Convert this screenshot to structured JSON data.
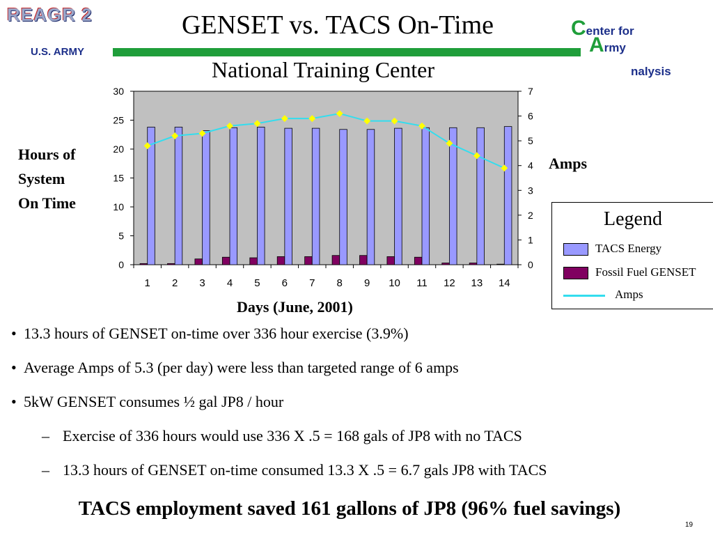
{
  "slide": {
    "logo_left": "REAGR 2",
    "org_left": "U.S. ARMY",
    "title": "GENSET vs. TACS On-Time",
    "subtitle": "National Training Center",
    "logo_right": {
      "line1_initial": "C",
      "line1_rest": "enter for",
      "line2_initial": "A",
      "line2_rest": "rmy",
      "line3": "nalysis"
    },
    "page_number": "19"
  },
  "chart_labels": {
    "y_left": [
      "Hours of",
      "System",
      "On Time"
    ],
    "y_right": "Amps",
    "x": "Days  (June, 2001)"
  },
  "legend": {
    "title": "Legend",
    "items": [
      "TACS  Energy",
      "Fossil Fuel GENSET",
      "Amps"
    ]
  },
  "chart_data": {
    "type": "bar",
    "categories": [
      "1",
      "2",
      "3",
      "4",
      "5",
      "6",
      "7",
      "8",
      "9",
      "10",
      "11",
      "12",
      "13",
      "14"
    ],
    "series": [
      {
        "name": "TACS  Energy",
        "axis": "left",
        "color": "#9999ff",
        "values": [
          23.8,
          23.8,
          23.2,
          23.7,
          23.8,
          23.6,
          23.6,
          23.4,
          23.4,
          23.6,
          23.7,
          23.7,
          23.7,
          23.9
        ]
      },
      {
        "name": "Fossil Fuel GENSET",
        "axis": "left",
        "color": "#800060",
        "values": [
          0.2,
          0.2,
          1.0,
          1.3,
          1.2,
          1.4,
          1.4,
          1.6,
          1.6,
          1.4,
          1.3,
          0.3,
          0.3,
          0.1
        ]
      },
      {
        "name": "Amps",
        "axis": "right",
        "type": "line",
        "color": "#33ddee",
        "marker_color": "#ffff00",
        "values": [
          4.8,
          5.2,
          5.3,
          5.6,
          5.7,
          5.9,
          5.9,
          6.1,
          5.8,
          5.8,
          5.6,
          4.9,
          4.4,
          3.9
        ]
      }
    ],
    "ylim_left": [
      0,
      30
    ],
    "yticks_left": [
      "0",
      "5",
      "10",
      "15",
      "20",
      "25",
      "30"
    ],
    "ylim_right": [
      0,
      7
    ],
    "yticks_right": [
      "0",
      "1",
      "2",
      "3",
      "4",
      "5",
      "6",
      "7"
    ],
    "plot_background": "#c0c0c0",
    "grid": false,
    "legend_position": "right"
  },
  "bullets": [
    {
      "marker": "•",
      "text": "13.3 hours of GENSET on-time over 336 hour exercise (3.9%)",
      "level": 1
    },
    {
      "marker": "•",
      "text": "Average Amps of 5.3 (per day) were less than targeted range of 6 amps",
      "level": 1
    },
    {
      "marker": "•",
      "text": "5kW GENSET consumes ½ gal JP8 / hour",
      "level": 1
    },
    {
      "marker": "–",
      "text": "Exercise of 336 hours would use 336 X .5 = 168 gals of JP8 with no TACS",
      "level": 2
    },
    {
      "marker": "–",
      "text": "13.3 hours of GENSET on-time consumed 13.3 X .5 = 6.7 gals JP8 with TACS",
      "level": 2
    }
  ],
  "conclusion": "TACS employment saved 161 gallons of JP8  (96% fuel savings)",
  "colors": {
    "green_bar": "#1f9e3a",
    "logo_blue": "#1c2f8a"
  }
}
